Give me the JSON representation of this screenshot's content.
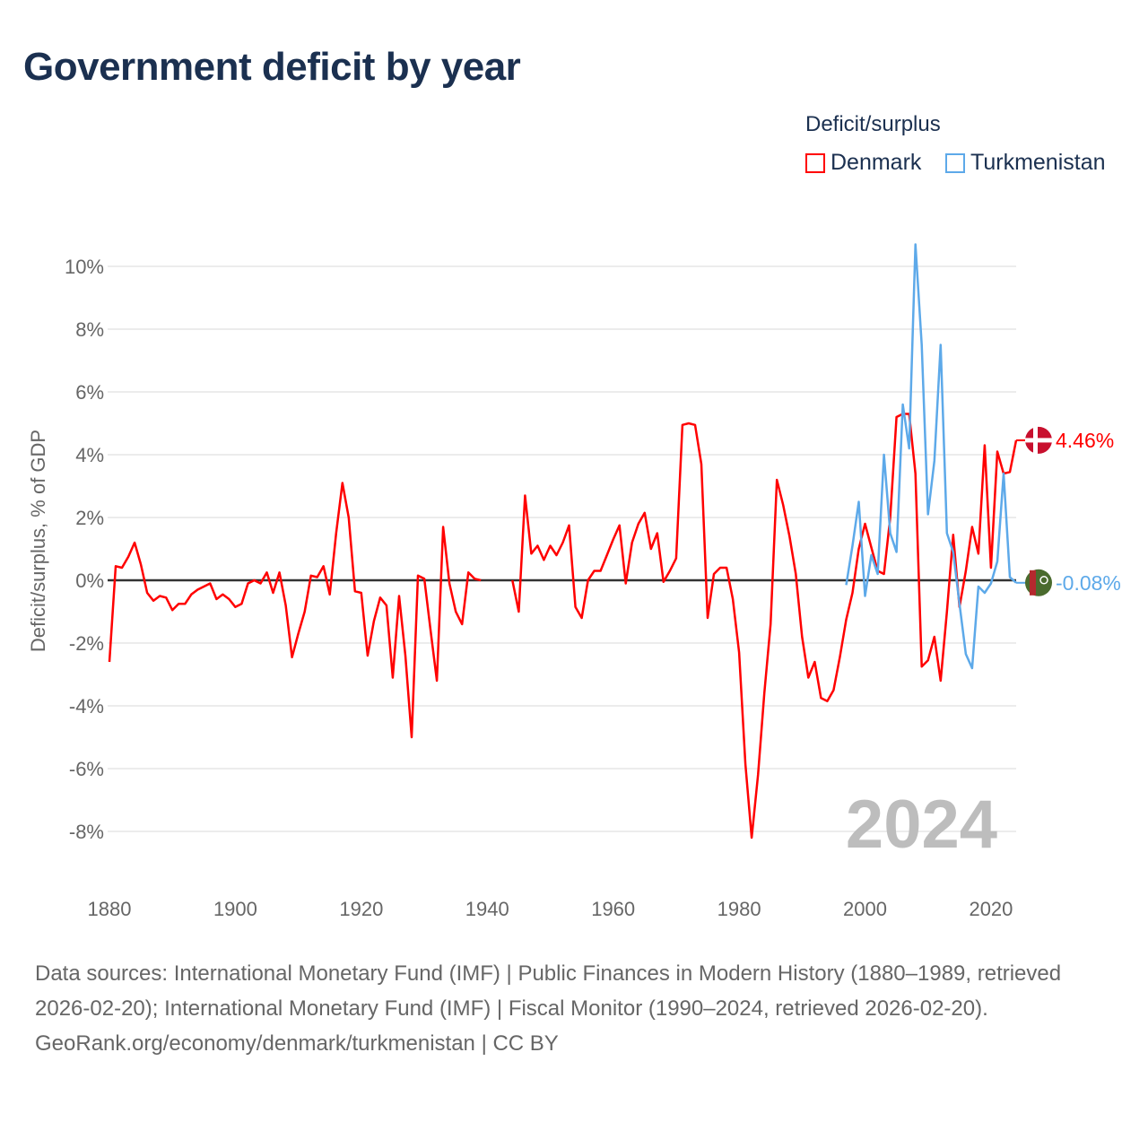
{
  "title": "Government deficit by year",
  "legend": {
    "title": "Deficit/surplus",
    "items": [
      {
        "label": "Denmark",
        "color": "#ff0000"
      },
      {
        "label": "Turkmenistan",
        "color": "#5da9e9"
      }
    ]
  },
  "year_watermark": "2024",
  "footer": {
    "sources": "Data sources: International Monetary Fund (IMF) | Public Finances in Modern History (1880–1989, retrieved 2026-02-20); International Monetary Fund (IMF) | Fiscal Monitor (1990–2024, retrieved 2026-02-20).",
    "credit": "GeoRank.org/economy/denmark/turkmenistan | CC BY"
  },
  "chart_data": {
    "type": "line",
    "title": "Government deficit by year",
    "xlabel": "",
    "ylabel": "Deficit/surplus, % of GDP",
    "xlim": [
      1880,
      2024
    ],
    "ylim": [
      -9,
      11
    ],
    "x_ticks": [
      1880,
      1900,
      1920,
      1940,
      1960,
      1980,
      2000,
      2020
    ],
    "x_tick_labels": [
      "1880",
      "1900",
      "1920",
      "1940",
      "1960",
      "1980",
      "2000",
      "2020"
    ],
    "y_ticks": [
      -8,
      -6,
      -4,
      -2,
      0,
      2,
      4,
      6,
      8,
      10
    ],
    "y_tick_labels": [
      "-8%",
      "-6%",
      "-4%",
      "-2%",
      "0%",
      "2%",
      "4%",
      "6%",
      "8%",
      "10%"
    ],
    "grid": true,
    "legend_position": "top-right",
    "series": [
      {
        "name": "Denmark",
        "color": "#ff0000",
        "start_year": 1880,
        "end_label": "4.46%",
        "values": [
          -2.6,
          0.45,
          0.4,
          0.75,
          1.2,
          0.5,
          -0.4,
          -0.65,
          -0.5,
          -0.55,
          -0.95,
          -0.75,
          -0.75,
          -0.45,
          -0.3,
          -0.2,
          -0.1,
          -0.6,
          -0.45,
          -0.6,
          -0.85,
          -0.75,
          -0.1,
          0.0,
          -0.1,
          0.25,
          -0.4,
          0.25,
          -0.8,
          -2.45,
          -1.7,
          -1.0,
          0.15,
          0.1,
          0.45,
          -0.45,
          1.5,
          3.1,
          2.0,
          -0.35,
          -0.4,
          -2.4,
          -1.3,
          -0.55,
          -0.8,
          -3.1,
          -0.5,
          -2.4,
          -5.0,
          0.15,
          0.05,
          -1.6,
          -3.2,
          1.7,
          -0.1,
          -1.0,
          -1.4,
          0.25,
          0.05,
          0.0,
          null,
          null,
          null,
          null,
          0.0,
          -1.0,
          2.7,
          0.85,
          1.1,
          0.65,
          1.1,
          0.8,
          1.2,
          1.75,
          -0.85,
          -1.2,
          0.0,
          0.3,
          0.3,
          0.8,
          1.3,
          1.75,
          -0.1,
          1.2,
          1.8,
          2.15,
          1.0,
          1.5,
          -0.05,
          0.3,
          0.7,
          4.95,
          5.0,
          4.95,
          3.7,
          -1.2,
          0.2,
          0.4,
          0.4,
          -0.6,
          -2.3,
          -5.85,
          -8.2,
          -6.2,
          -3.6,
          -1.4,
          3.2,
          2.4,
          1.4,
          0.2,
          -1.8,
          -3.1,
          -2.6,
          -3.75,
          -3.85,
          -3.5,
          -2.45,
          -1.25,
          -0.4,
          1.0,
          1.8,
          1.05,
          0.3,
          0.2,
          2.0,
          5.2,
          5.3,
          5.3,
          3.4,
          -2.75,
          -2.55,
          -1.8,
          -3.2,
          -1.0,
          1.45,
          -0.85,
          0.3,
          1.7,
          0.85,
          4.3,
          0.4,
          4.1,
          3.4,
          3.45,
          4.46
        ]
      },
      {
        "name": "Turkmenistan",
        "color": "#5da9e9",
        "start_year": 1997,
        "end_label": "-0.08%",
        "values": [
          -0.15,
          1.1,
          2.5,
          -0.5,
          0.8,
          0.2,
          4.0,
          1.5,
          0.9,
          5.6,
          4.2,
          10.7,
          7.5,
          2.1,
          3.8,
          7.5,
          1.5,
          0.9,
          -0.75,
          -2.35,
          -2.8,
          -0.2,
          -0.4,
          -0.1,
          0.6,
          3.4,
          0.1,
          -0.08
        ]
      }
    ]
  }
}
